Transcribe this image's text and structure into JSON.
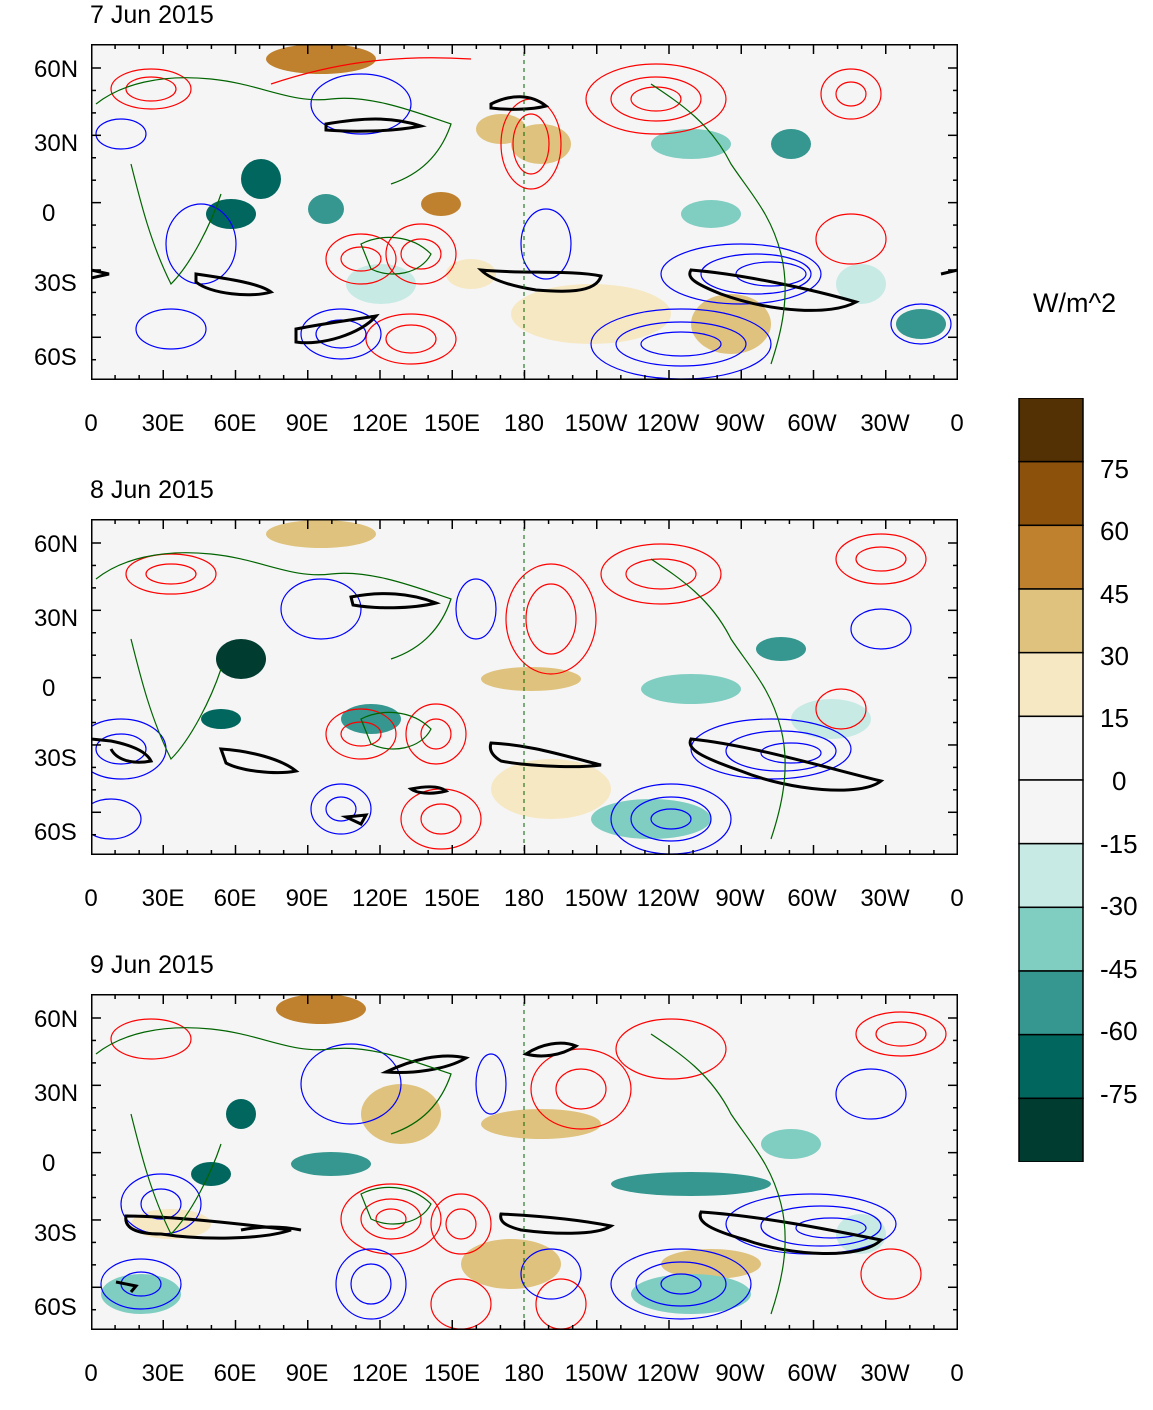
{
  "panels": [
    {
      "title": "7 Jun 2015"
    },
    {
      "title": "8 Jun 2015"
    },
    {
      "title": "9 Jun 2015"
    }
  ],
  "axes": {
    "y_ticks": [
      "60N",
      "30N",
      "0",
      "30S",
      "60S"
    ],
    "x_ticks": [
      "0",
      "30E",
      "60E",
      "90E",
      "120E",
      "150E",
      "180",
      "150W",
      "120W",
      "90W",
      "60W",
      "30W",
      "0"
    ]
  },
  "colorbar": {
    "units": "W/m^2",
    "labels": [
      "75",
      "60",
      "45",
      "30",
      "15",
      "0",
      "-15",
      "-30",
      "-45",
      "-60",
      "-75"
    ],
    "colors": [
      "#543005",
      "#8c510a",
      "#bf812d",
      "#dfc27d",
      "#f6e8c3",
      "#f5f5f5",
      "#f5f5f5",
      "#c7eae5",
      "#80cdc1",
      "#35978f",
      "#01665e",
      "#003c30"
    ]
  },
  "legend_colors": {
    "positive_contour": "#ff0000",
    "negative_contour": "#0000ff",
    "threshold_contour": "#000000",
    "coastline": "#006400"
  }
}
